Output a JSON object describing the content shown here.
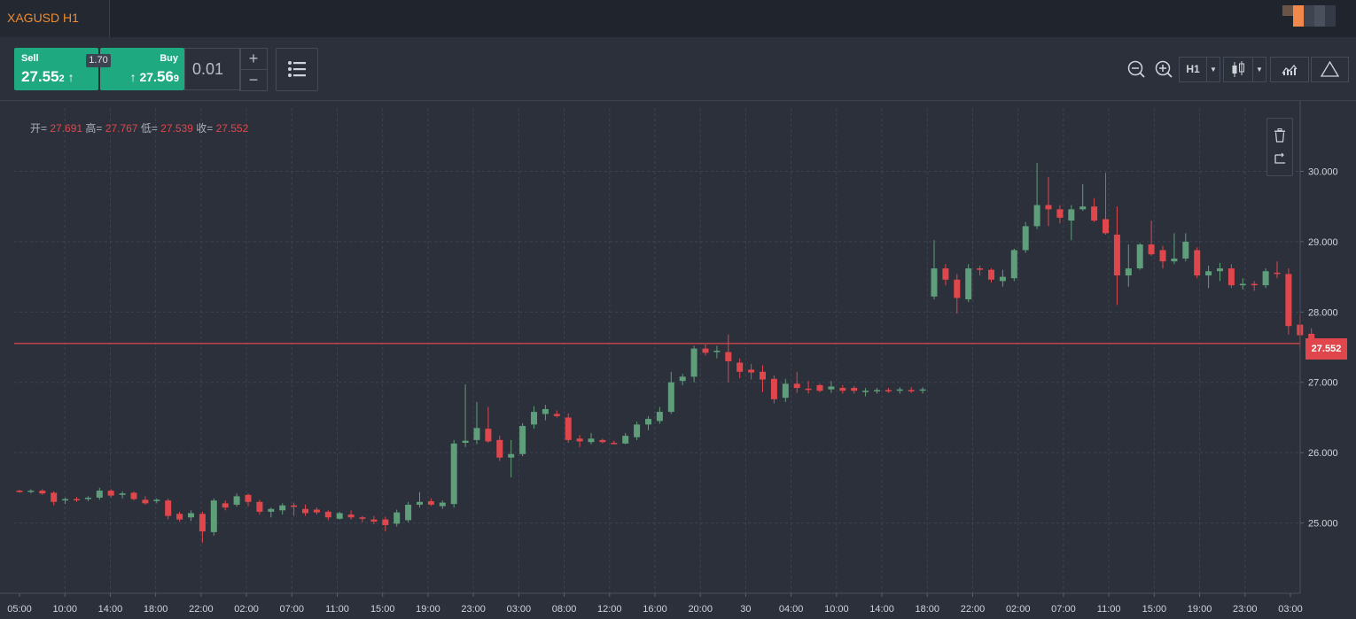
{
  "tab": {
    "title": "XAGUSD H1"
  },
  "trade": {
    "sell_label": "Sell",
    "sell_price_main": "27.55",
    "sell_price_last": "2",
    "sell_arrow": "↑",
    "buy_label": "Buy",
    "buy_price_pre": "27.",
    "buy_price_main": "56",
    "buy_price_last": "9",
    "buy_arrow": "↑",
    "spread": "1.70",
    "lot": "0.01",
    "lot_plus": "+",
    "lot_minus": "−"
  },
  "toolbar": {
    "timeframe": "H1",
    "icons": [
      "zoom-out-icon",
      "zoom-in-icon",
      "candlestick-icon",
      "indicators-icon",
      "drawing-icon"
    ]
  },
  "ohlc": {
    "open_label": "开=",
    "open": "27.691",
    "high_label": "高=",
    "high": "27.767",
    "low_label": "低=",
    "low": "27.539",
    "close_label": "收=",
    "close": "27.552"
  },
  "current_price": "27.552",
  "colors": {
    "up": "#5f9e7a",
    "down": "#e0474c",
    "background": "#2b303b",
    "accent": "#1fa981"
  },
  "chart_data": {
    "type": "candlestick",
    "ylim": [
      24.0,
      30.9
    ],
    "yticks": [
      "25.000",
      "26.000",
      "27.000",
      "28.000",
      "29.000",
      "30.000"
    ],
    "xticks": [
      "05:00",
      "10:00",
      "14:00",
      "18:00",
      "22:00",
      "02:00",
      "07:00",
      "11:00",
      "15:00",
      "19:00",
      "23:00",
      "03:00",
      "08:00",
      "12:00",
      "16:00",
      "20:00",
      "30",
      "04:00",
      "10:00",
      "14:00",
      "18:00",
      "22:00",
      "02:00",
      "07:00",
      "11:00",
      "15:00",
      "19:00",
      "23:00",
      "03:00"
    ],
    "candles": [
      [
        25.46,
        25.47,
        25.43,
        25.44
      ],
      [
        25.45,
        25.48,
        25.42,
        25.46
      ],
      [
        25.46,
        25.48,
        25.4,
        25.42
      ],
      [
        25.43,
        25.45,
        25.25,
        25.3
      ],
      [
        25.32,
        25.36,
        25.27,
        25.34
      ],
      [
        25.34,
        25.37,
        25.3,
        25.33
      ],
      [
        25.34,
        25.38,
        25.31,
        25.36
      ],
      [
        25.36,
        25.5,
        25.33,
        25.46
      ],
      [
        25.46,
        25.48,
        25.36,
        25.39
      ],
      [
        25.4,
        25.45,
        25.35,
        25.42
      ],
      [
        25.43,
        25.45,
        25.32,
        25.34
      ],
      [
        25.33,
        25.38,
        25.26,
        25.28
      ],
      [
        25.31,
        25.35,
        25.28,
        25.33
      ],
      [
        25.32,
        25.35,
        25.05,
        25.1
      ],
      [
        25.13,
        25.16,
        25.02,
        25.05
      ],
      [
        25.08,
        25.18,
        25.03,
        25.14
      ],
      [
        25.13,
        25.16,
        24.72,
        24.88
      ],
      [
        24.87,
        25.35,
        24.82,
        25.32
      ],
      [
        25.28,
        25.32,
        25.18,
        25.22
      ],
      [
        25.26,
        25.42,
        25.23,
        25.38
      ],
      [
        25.4,
        25.42,
        25.24,
        25.3
      ],
      [
        25.3,
        25.33,
        25.12,
        25.16
      ],
      [
        25.16,
        25.22,
        25.08,
        25.2
      ],
      [
        25.18,
        25.28,
        25.12,
        25.25
      ],
      [
        25.25,
        25.29,
        25.1,
        25.23
      ],
      [
        25.2,
        25.26,
        25.1,
        25.14
      ],
      [
        25.19,
        25.22,
        25.12,
        25.15
      ],
      [
        25.16,
        25.18,
        25.04,
        25.08
      ],
      [
        25.06,
        25.16,
        25.05,
        25.14
      ],
      [
        25.12,
        25.18,
        25.05,
        25.08
      ],
      [
        25.08,
        25.1,
        25.01,
        25.06
      ],
      [
        25.05,
        25.1,
        24.98,
        25.02
      ],
      [
        25.05,
        25.09,
        24.88,
        24.97
      ],
      [
        24.99,
        25.19,
        24.95,
        25.15
      ],
      [
        25.04,
        25.3,
        25.01,
        25.26
      ],
      [
        25.26,
        25.44,
        25.22,
        25.3
      ],
      [
        25.31,
        25.35,
        25.24,
        25.26
      ],
      [
        25.24,
        25.32,
        25.2,
        25.29
      ],
      [
        25.27,
        26.18,
        25.22,
        26.13
      ],
      [
        26.14,
        26.97,
        26.08,
        26.17
      ],
      [
        26.18,
        26.72,
        26.12,
        26.35
      ],
      [
        26.34,
        26.65,
        26.14,
        26.16
      ],
      [
        26.18,
        26.24,
        25.88,
        25.93
      ],
      [
        25.93,
        26.18,
        25.65,
        25.98
      ],
      [
        25.98,
        26.42,
        25.95,
        26.38
      ],
      [
        26.4,
        26.66,
        26.34,
        26.58
      ],
      [
        26.55,
        26.68,
        26.46,
        26.62
      ],
      [
        26.55,
        26.6,
        26.5,
        26.52
      ],
      [
        26.5,
        26.56,
        26.14,
        26.18
      ],
      [
        26.2,
        26.25,
        26.08,
        26.16
      ],
      [
        26.15,
        26.28,
        26.12,
        26.2
      ],
      [
        26.18,
        26.2,
        26.13,
        26.15
      ],
      [
        26.14,
        26.17,
        26.12,
        26.13
      ],
      [
        26.13,
        26.28,
        26.12,
        26.24
      ],
      [
        26.22,
        26.44,
        26.18,
        26.4
      ],
      [
        26.4,
        26.52,
        26.32,
        26.48
      ],
      [
        26.45,
        26.65,
        26.41,
        26.58
      ],
      [
        26.58,
        27.15,
        26.55,
        27.0
      ],
      [
        27.02,
        27.12,
        26.96,
        27.08
      ],
      [
        27.08,
        27.52,
        27.0,
        27.48
      ],
      [
        27.48,
        27.54,
        27.38,
        27.42
      ],
      [
        27.43,
        27.52,
        27.34,
        27.45
      ],
      [
        27.43,
        27.68,
        27.0,
        27.3
      ],
      [
        27.28,
        27.34,
        27.06,
        27.15
      ],
      [
        27.18,
        27.26,
        27.04,
        27.14
      ],
      [
        27.15,
        27.24,
        26.86,
        27.04
      ],
      [
        27.05,
        27.1,
        26.7,
        26.76
      ],
      [
        26.78,
        27.05,
        26.72,
        26.98
      ],
      [
        26.98,
        27.15,
        26.85,
        26.92
      ],
      [
        26.91,
        27.02,
        26.84,
        26.9
      ],
      [
        26.96,
        26.98,
        26.86,
        26.88
      ],
      [
        26.9,
        27.02,
        26.85,
        26.94
      ],
      [
        26.92,
        26.96,
        26.84,
        26.88
      ],
      [
        26.92,
        26.95,
        26.84,
        26.88
      ],
      [
        26.86,
        26.92,
        26.8,
        26.88
      ],
      [
        26.88,
        26.92,
        26.84,
        26.89
      ],
      [
        26.89,
        26.92,
        26.85,
        26.87
      ],
      [
        26.88,
        26.93,
        26.84,
        26.9
      ],
      [
        26.89,
        26.93,
        26.85,
        26.88
      ],
      [
        26.89,
        26.93,
        26.84,
        26.9
      ],
      [
        28.22,
        29.02,
        28.18,
        28.62
      ],
      [
        28.62,
        28.68,
        28.38,
        28.46
      ],
      [
        28.46,
        28.54,
        27.98,
        28.2
      ],
      [
        28.18,
        28.68,
        28.14,
        28.62
      ],
      [
        28.62,
        28.66,
        28.52,
        28.6
      ],
      [
        28.6,
        28.62,
        28.42,
        28.46
      ],
      [
        28.44,
        28.6,
        28.36,
        28.5
      ],
      [
        28.48,
        28.9,
        28.44,
        28.88
      ],
      [
        28.88,
        29.28,
        28.84,
        29.22
      ],
      [
        29.22,
        30.12,
        29.18,
        29.52
      ],
      [
        29.52,
        29.92,
        29.22,
        29.46
      ],
      [
        29.46,
        29.52,
        29.26,
        29.34
      ],
      [
        29.3,
        29.52,
        29.02,
        29.46
      ],
      [
        29.46,
        29.82,
        29.44,
        29.5
      ],
      [
        29.5,
        29.62,
        29.28,
        29.3
      ],
      [
        29.32,
        29.98,
        29.1,
        29.12
      ],
      [
        29.1,
        29.5,
        28.1,
        28.52
      ],
      [
        28.52,
        28.96,
        28.36,
        28.62
      ],
      [
        28.62,
        28.98,
        28.6,
        28.96
      ],
      [
        28.96,
        29.3,
        28.8,
        28.82
      ],
      [
        28.88,
        28.94,
        28.62,
        28.72
      ],
      [
        28.72,
        29.12,
        28.68,
        28.76
      ],
      [
        28.76,
        29.12,
        28.72,
        29.0
      ],
      [
        28.88,
        28.92,
        28.48,
        28.52
      ],
      [
        28.52,
        28.66,
        28.34,
        28.58
      ],
      [
        28.58,
        28.7,
        28.44,
        28.62
      ],
      [
        28.62,
        28.68,
        28.34,
        28.38
      ],
      [
        28.38,
        28.48,
        28.32,
        28.4
      ],
      [
        28.4,
        28.44,
        28.3,
        28.38
      ],
      [
        28.38,
        28.62,
        28.34,
        28.58
      ],
      [
        28.56,
        28.72,
        28.48,
        28.54
      ],
      [
        28.54,
        28.62,
        27.68,
        27.8
      ],
      [
        27.82,
        27.96,
        27.48,
        27.67
      ],
      [
        27.69,
        27.77,
        27.54,
        27.55
      ]
    ]
  }
}
